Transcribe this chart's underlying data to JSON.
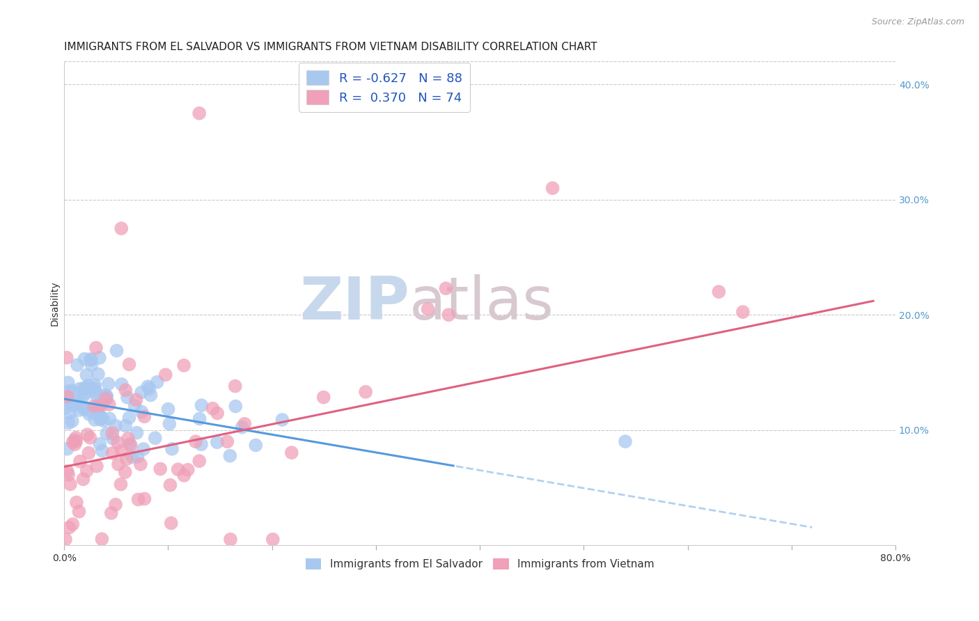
{
  "title": "IMMIGRANTS FROM EL SALVADOR VS IMMIGRANTS FROM VIETNAM DISABILITY CORRELATION CHART",
  "source": "Source: ZipAtlas.com",
  "xlabel": "",
  "ylabel": "Disability",
  "xlim": [
    0.0,
    0.8
  ],
  "ylim": [
    0.0,
    0.42
  ],
  "yticks": [
    0.1,
    0.2,
    0.3,
    0.4
  ],
  "ytick_labels": [
    "10.0%",
    "20.0%",
    "30.0%",
    "40.0%"
  ],
  "xticks": [
    0.0,
    0.1,
    0.2,
    0.3,
    0.4,
    0.5,
    0.6,
    0.7,
    0.8
  ],
  "xtick_labels": [
    "0.0%",
    "",
    "",
    "",
    "",
    "",
    "",
    "",
    "80.0%"
  ],
  "el_salvador_R": -0.627,
  "el_salvador_N": 88,
  "vietnam_R": 0.37,
  "vietnam_N": 74,
  "el_salvador_color": "#A8C8F0",
  "vietnam_color": "#F0A0B8",
  "el_salvador_line_color": "#5599DD",
  "vietnam_line_color": "#E06080",
  "background_color": "#FFFFFF",
  "grid_color": "#BBBBBB",
  "watermark_zip": "ZIP",
  "watermark_atlas": "atlas",
  "watermark_color": "#E0E8F0",
  "title_fontsize": 11,
  "axis_label_fontsize": 10,
  "tick_fontsize": 10,
  "legend_fontsize": 12,
  "el_salvador_slope": -0.155,
  "el_salvador_intercept": 0.127,
  "vietnam_slope": 0.185,
  "vietnam_intercept": 0.068,
  "es_line_solid_end": 0.375,
  "es_line_dash_end": 0.72,
  "vn_line_end": 0.78
}
